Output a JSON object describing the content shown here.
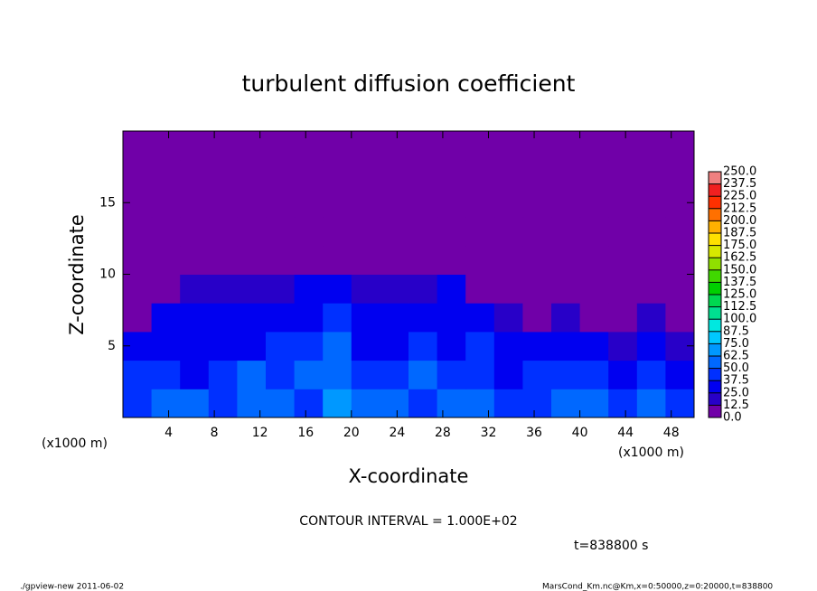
{
  "chart_data": {
    "type": "heatmap",
    "title": "turbulent diffusion coefficient",
    "x_label": "X-coordinate",
    "y_label": "Z-coordinate",
    "x_unit": "(x1000 m)",
    "x_unit_right": "(x1000 m)",
    "note": "CONTOUR INTERVAL = 1.000E+02",
    "time_label": "t=838800 s",
    "footer_left": "./gpview-new  2011-06-02",
    "footer_right": "MarsCond_Km.nc@Km,x=0:50000,z=0:20000,t=838800",
    "xlim": [
      0,
      50
    ],
    "ylim": [
      0,
      20
    ],
    "xticks": [
      4,
      8,
      12,
      16,
      20,
      24,
      28,
      32,
      36,
      40,
      44,
      48
    ],
    "yticks": [
      5,
      10,
      15
    ],
    "x_bins": [
      0,
      2.5,
      5,
      7.5,
      10,
      12.5,
      15,
      17.5,
      20,
      22.5,
      25,
      27.5,
      30,
      32.5,
      35,
      37.5,
      40,
      42.5,
      45,
      47.5,
      50
    ],
    "z_bins": [
      0,
      2,
      4,
      6,
      8,
      10,
      12,
      14,
      16,
      18,
      20
    ],
    "values": [
      [
        45,
        55,
        50,
        40,
        60,
        50,
        45,
        65,
        55,
        50,
        45,
        55,
        50,
        40,
        45,
        55,
        50,
        45,
        50,
        40
      ],
      [
        40,
        45,
        35,
        40,
        50,
        45,
        55,
        60,
        40,
        45,
        50,
        40,
        45,
        35,
        40,
        45,
        40,
        35,
        40,
        35
      ],
      [
        30,
        35,
        30,
        25,
        35,
        40,
        45,
        50,
        35,
        30,
        40,
        35,
        40,
        30,
        25,
        30,
        25,
        20,
        25,
        20
      ],
      [
        10,
        30,
        35,
        30,
        25,
        30,
        35,
        40,
        30,
        25,
        30,
        35,
        30,
        15,
        10,
        15,
        10,
        10,
        15,
        10
      ],
      [
        5,
        5,
        15,
        20,
        20,
        20,
        25,
        30,
        20,
        15,
        20,
        25,
        10,
        5,
        5,
        5,
        5,
        5,
        5,
        5
      ],
      [
        5,
        5,
        5,
        5,
        5,
        5,
        5,
        5,
        5,
        5,
        5,
        5,
        5,
        5,
        5,
        5,
        5,
        5,
        5,
        5
      ],
      [
        5,
        5,
        5,
        5,
        5,
        5,
        5,
        5,
        5,
        5,
        5,
        5,
        5,
        5,
        5,
        5,
        5,
        5,
        5,
        5
      ],
      [
        5,
        5,
        5,
        5,
        5,
        5,
        5,
        5,
        5,
        5,
        5,
        5,
        5,
        5,
        5,
        5,
        5,
        5,
        5,
        5
      ],
      [
        5,
        5,
        5,
        5,
        5,
        5,
        5,
        5,
        5,
        5,
        5,
        5,
        5,
        5,
        5,
        5,
        5,
        5,
        5,
        5
      ],
      [
        5,
        5,
        5,
        5,
        5,
        5,
        5,
        5,
        5,
        5,
        5,
        5,
        5,
        5,
        5,
        5,
        5,
        5,
        5,
        5
      ]
    ],
    "colorbar_ticks": [
      {
        "value": 0,
        "label": "0.0"
      },
      {
        "value": 12.5,
        "label": "12.5"
      },
      {
        "value": 25,
        "label": "25.0"
      },
      {
        "value": 37.5,
        "label": "37.5"
      },
      {
        "value": 50,
        "label": "50.0"
      },
      {
        "value": 62.5,
        "label": "62.5"
      },
      {
        "value": 75,
        "label": "75.0"
      },
      {
        "value": 87.5,
        "label": "87.5"
      },
      {
        "value": 100,
        "label": "100.0"
      },
      {
        "value": 112.5,
        "label": "112.5"
      },
      {
        "value": 125,
        "label": "125.0"
      },
      {
        "value": 137.5,
        "label": "137.5"
      },
      {
        "value": 150,
        "label": "150.0"
      },
      {
        "value": 162.5,
        "label": "162.5"
      },
      {
        "value": 175,
        "label": "175.0"
      },
      {
        "value": 187.5,
        "label": "187.5"
      },
      {
        "value": 200,
        "label": "200.0"
      },
      {
        "value": 212.5,
        "label": "212.5"
      },
      {
        "value": 225,
        "label": "225.0"
      },
      {
        "value": 237.5,
        "label": "237.5"
      },
      {
        "value": 250,
        "label": "250.0"
      }
    ],
    "colors": [
      "#7000a8",
      "#2800c8",
      "#0000f0",
      "#0030ff",
      "#0068ff",
      "#0098ff",
      "#00c8ff",
      "#00e8e0",
      "#00e090",
      "#00d850",
      "#00d000",
      "#40d800",
      "#90e000",
      "#d8e800",
      "#ffe000",
      "#ffb000",
      "#ff7000",
      "#ff3000",
      "#f02020",
      "#f08080"
    ]
  }
}
